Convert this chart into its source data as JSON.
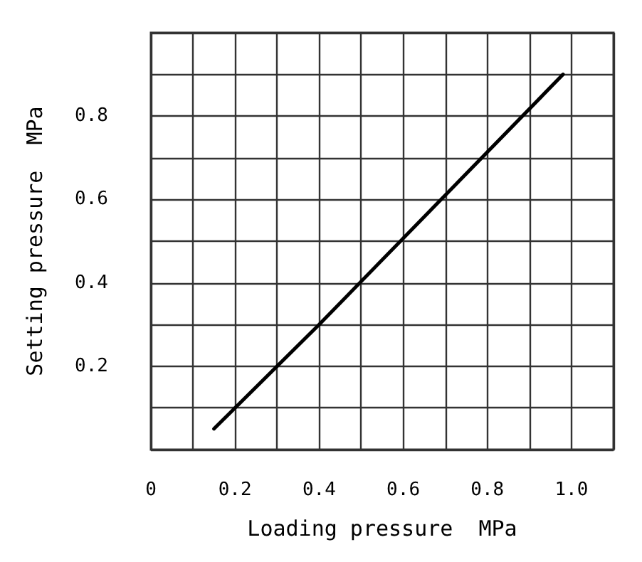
{
  "chart_data": {
    "type": "line",
    "xlabel": "Loading pressure  MPa",
    "ylabel": "Setting pressure  MPa",
    "x": [
      0.15,
      0.4,
      0.98
    ],
    "series": [
      {
        "color": "#000000",
        "values": [
          0.05,
          0.3,
          0.9
        ]
      }
    ],
    "xlim": [
      0,
      1.1
    ],
    "xticks": [
      0,
      {
        "value": 0.1,
        "label": null
      },
      0.2,
      {
        "value": 0.3,
        "label": null
      },
      0.4,
      {
        "value": 0.5,
        "label": null
      },
      0.6,
      {
        "value": 0.7,
        "label": null
      },
      0.8,
      {
        "value": 0.9,
        "label": null
      },
      {
        "value": 1,
        "label": "1.0"
      },
      {
        "value": 1.1,
        "label": null
      }
    ],
    "ylim": [
      0,
      1
    ],
    "yticks": [
      {
        "value": 0,
        "label": null
      },
      {
        "value": 0.1,
        "label": null
      },
      0.2,
      {
        "value": 0.3,
        "label": null
      },
      0.4,
      {
        "value": 0.5,
        "label": null
      },
      0.6,
      {
        "value": 0.7,
        "label": null
      },
      0.8,
      {
        "value": 0.9,
        "label": null
      },
      {
        "value": 1,
        "label": null
      }
    ],
    "grid": true,
    "marker": "none",
    "line_style": "solid"
  }
}
